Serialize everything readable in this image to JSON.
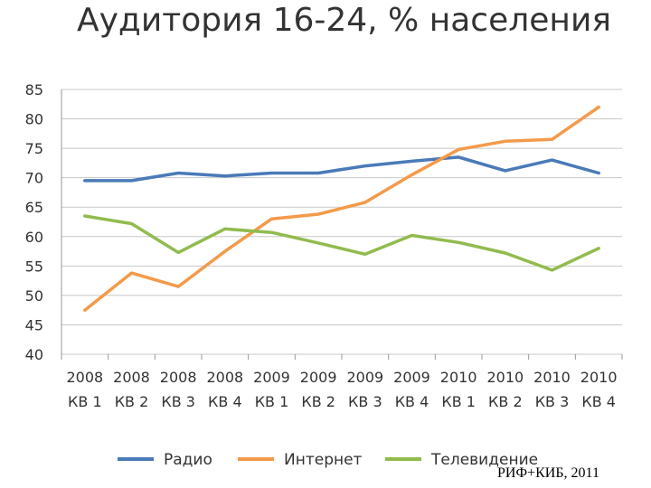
{
  "page": {
    "title": "Аудитория 16-24, % населения",
    "source": "РИФ+КИБ, 2011"
  },
  "chart_data": {
    "type": "line",
    "title": "Аудитория 16-24, % населения",
    "categories": [
      [
        "2008",
        "КВ 1"
      ],
      [
        "2008",
        "КВ 2"
      ],
      [
        "2008",
        "КВ 3"
      ],
      [
        "2008",
        "КВ 4"
      ],
      [
        "2009",
        "КВ 1"
      ],
      [
        "2009",
        "КВ 2"
      ],
      [
        "2009",
        "КВ 3"
      ],
      [
        "2009",
        "КВ 4"
      ],
      [
        "2010",
        "КВ 1"
      ],
      [
        "2010",
        "КВ 2"
      ],
      [
        "2010",
        "КВ 3"
      ],
      [
        "2010",
        "КВ 4"
      ]
    ],
    "yticks": [
      "85",
      "80",
      "75",
      "70",
      "65",
      "60",
      "55",
      "50",
      "45",
      "40"
    ],
    "ylim": [
      40,
      85
    ],
    "grid": true,
    "legend_position": "bottom",
    "series": [
      {
        "name": "Радио",
        "color": "#4a7ab8",
        "values": [
          69.5,
          69.5,
          70.8,
          70.3,
          70.8,
          70.8,
          72.0,
          72.8,
          73.5,
          71.2,
          73.0,
          70.8
        ]
      },
      {
        "name": "Интернет",
        "color": "#f39a4a",
        "values": [
          47.5,
          53.8,
          51.5,
          57.5,
          63.0,
          63.8,
          65.8,
          70.5,
          74.8,
          76.2,
          76.5,
          82.0
        ]
      },
      {
        "name": "Телевидение",
        "color": "#92bb4e",
        "values": [
          63.5,
          62.2,
          57.3,
          61.3,
          60.7,
          58.9,
          57.0,
          60.2,
          59.0,
          57.2,
          54.3,
          58.0
        ]
      }
    ]
  }
}
